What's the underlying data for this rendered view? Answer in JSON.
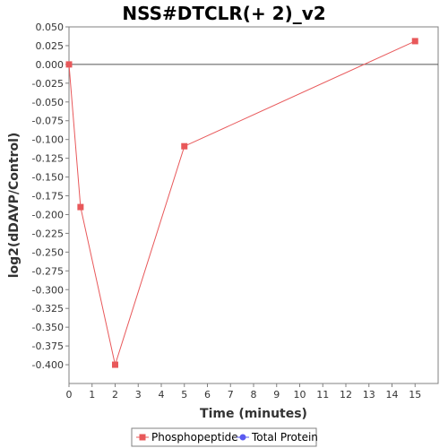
{
  "chart_data": {
    "type": "line",
    "title": "NSS#DTCLR(+ 2)_v2",
    "xlabel": "Time (minutes)",
    "ylabel": "log2(dDAVP/Control)",
    "xlim": [
      0,
      16
    ],
    "ylim": [
      -0.425,
      0.05
    ],
    "x_ticks": [
      "0",
      "1",
      "2",
      "3",
      "4",
      "5",
      "6",
      "7",
      "8",
      "9",
      "10",
      "11",
      "12",
      "13",
      "14",
      "15"
    ],
    "y_ticks": [
      "0.050",
      "0.025",
      "0.000",
      "-0.025",
      "-0.050",
      "-0.075",
      "-0.100",
      "-0.125",
      "-0.150",
      "-0.175",
      "-0.200",
      "-0.225",
      "-0.250",
      "-0.275",
      "-0.300",
      "-0.325",
      "-0.350",
      "-0.375",
      "-0.400"
    ],
    "grid": false,
    "zero_line": true,
    "legend_position": "bottom",
    "series": [
      {
        "name": "Phosphopeptide",
        "color": "#e8585a",
        "marker": "square",
        "x": [
          0,
          0.5,
          2,
          5,
          15
        ],
        "y": [
          0.0,
          -0.19,
          -0.4,
          -0.109,
          0.031
        ]
      },
      {
        "name": "Total Protein",
        "color": "#5a5af0",
        "marker": "circle",
        "x": [],
        "y": []
      }
    ]
  }
}
